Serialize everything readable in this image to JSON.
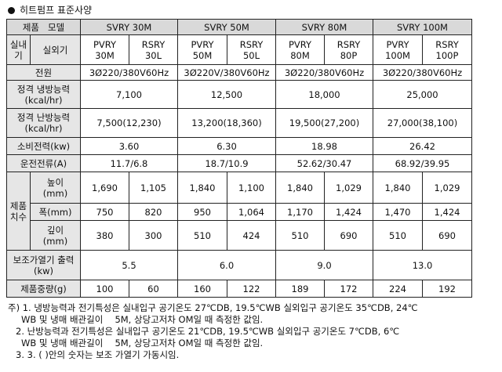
{
  "title": "히트펌프 표준사양",
  "header": {
    "product": "제품",
    "model": "모델",
    "models": [
      "SVRY 30M",
      "SVRY 50M",
      "SVRY 80M",
      "SVRY 100M"
    ]
  },
  "unit_row": {
    "indoor": "실내기",
    "outdoor": "실외기",
    "pairs": [
      [
        "PVRY\n30M",
        "RSRY\n30L"
      ],
      [
        "PVRY\n50M",
        "RSRY\n50L"
      ],
      [
        "PVRY\n80M",
        "RSRY\n80P"
      ],
      [
        "PVRY\n100M",
        "RSRY\n100P"
      ]
    ]
  },
  "rows": {
    "power": {
      "label": "전원",
      "values": [
        "3Ø220/380V60Hz",
        "3Ø220V/380V60Hz",
        "3Ø220/380V60Hz",
        "3Ø220/380V60Hz"
      ]
    },
    "cooling": {
      "label": "정격 냉방능력\n(kcal/hr)",
      "values": [
        "7,100",
        "12,500",
        "18,000",
        "25,000"
      ]
    },
    "heating": {
      "label": "정격 난방능력\n(kcal/hr)",
      "values": [
        "7,500(12,230)",
        "13,200(18,360)",
        "19,500(27,200)",
        "27,000(38,100)"
      ]
    },
    "consumption": {
      "label": "소비전력(kw)",
      "values": [
        "3.60",
        "6.30",
        "18.98",
        "26.42"
      ]
    },
    "current": {
      "label": "운전전류(A)",
      "values": [
        "11.7/6.8",
        "18.7/10.9",
        "52.62/30.47",
        "68.92/39.95"
      ]
    },
    "dimensions": {
      "label": "제품\n치수",
      "height": {
        "label": "높이\n(mm)",
        "values": [
          "1,690",
          "1,105",
          "1,840",
          "1,100",
          "1,840",
          "1,029",
          "1,840",
          "1,029"
        ]
      },
      "width": {
        "label": "폭(mm)",
        "values": [
          "750",
          "820",
          "950",
          "1,064",
          "1,170",
          "1,424",
          "1,470",
          "1,424"
        ]
      },
      "depth": {
        "label": "깊이\n(mm)",
        "values": [
          "380",
          "300",
          "510",
          "424",
          "510",
          "690",
          "510",
          "690"
        ]
      }
    },
    "aux_heater": {
      "label": "보조가열기 출력(kw)",
      "values": [
        "5.5",
        "6.0",
        "9.0",
        "13.0"
      ]
    },
    "weight": {
      "label": "제품중량(g)",
      "values": [
        "100",
        "60",
        "160",
        "122",
        "189",
        "172",
        "224",
        "192"
      ]
    }
  },
  "notes": {
    "n1a": "주) 1. 냉방능력과 전기특성은 실내입구 공기온도 27℃DB, 19.5℃WB 실외입구 공기온도 35℃DB, 24℃",
    "n1b": "WB 및 냉매 배관길이 　5M, 상당고저차 OM일 때 측정한 값임.",
    "n2a": "2. 난방능력과 전기특성은 실내입구 공기온도 21℃DB, 19.5℃WB 실외입구 공기온도 7℃DB, 6℃",
    "n2b": "WB 및 냉매 배관길이 　5M, 상당고저차 OM일 때 측정한 값임.",
    "n3": "3. 3. ( )안의 숫자는 보조 가열기 가동시임."
  }
}
